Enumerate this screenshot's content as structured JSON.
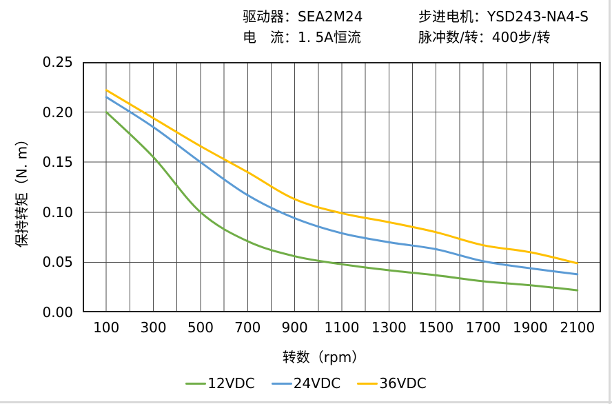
{
  "page": {
    "background": "#ffffff",
    "edge_strip_color": "#d9d9d9"
  },
  "header": {
    "driver_line": "驱动器：SEA2M24",
    "current_line": "电　流：1. 5A恒流",
    "motor_line": "步进电机：YSD243-NA4-S",
    "pulse_line": "脉冲数/转：400步/转"
  },
  "chart_data": {
    "type": "line",
    "title": "",
    "xlabel": "转数（rpm）",
    "ylabel": "保持转矩（N. m）",
    "xlim": [
      0,
      2200
    ],
    "ylim": [
      0,
      0.25
    ],
    "grid": true,
    "grid_step_x": 100,
    "legend_position": "bottom",
    "x": [
      100,
      300,
      500,
      700,
      900,
      1100,
      1300,
      1500,
      1700,
      1900,
      2100
    ],
    "x_ticks": [
      100,
      300,
      500,
      700,
      900,
      1100,
      1300,
      1500,
      1700,
      1900,
      2100
    ],
    "y_ticks": [
      0,
      0.05,
      0.1,
      0.15,
      0.2,
      0.25
    ],
    "y_tick_labels": [
      "0.00",
      "0.05",
      "0.10",
      "0.15",
      "0.20",
      "0.25"
    ],
    "series": [
      {
        "name": "12VDC",
        "color": "#70AD47",
        "values": [
          0.2,
          0.155,
          0.1,
          0.071,
          0.056,
          0.048,
          0.042,
          0.037,
          0.031,
          0.027,
          0.022
        ]
      },
      {
        "name": "24VDC",
        "color": "#5B9BD5",
        "values": [
          0.215,
          0.185,
          0.15,
          0.117,
          0.094,
          0.079,
          0.07,
          0.063,
          0.051,
          0.044,
          0.038
        ]
      },
      {
        "name": "36VDC",
        "color": "#FFC000",
        "values": [
          0.222,
          0.194,
          0.166,
          0.14,
          0.113,
          0.099,
          0.09,
          0.08,
          0.067,
          0.06,
          0.049
        ]
      }
    ]
  }
}
